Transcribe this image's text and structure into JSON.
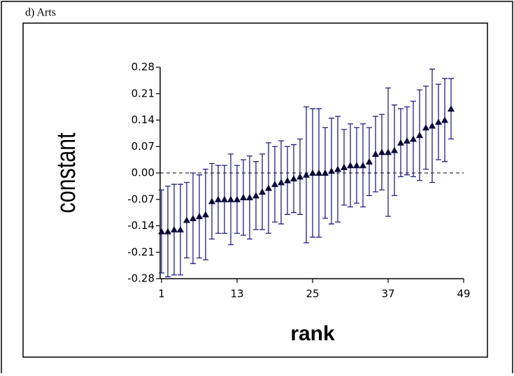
{
  "chart_data": {
    "type": "errorbar",
    "title": "d) Arts",
    "x_label": "rank",
    "y_label": "constant",
    "x": [
      1,
      2,
      3,
      4,
      5,
      6,
      7,
      8,
      9,
      10,
      11,
      12,
      13,
      14,
      15,
      16,
      17,
      18,
      19,
      20,
      21,
      22,
      23,
      24,
      25,
      26,
      27,
      28,
      29,
      30,
      31,
      32,
      33,
      34,
      35,
      36,
      37,
      38,
      39,
      40,
      41,
      42,
      43,
      44,
      45,
      46,
      47
    ],
    "values": [
      -0.155,
      -0.155,
      -0.15,
      -0.15,
      -0.125,
      -0.12,
      -0.115,
      -0.11,
      -0.075,
      -0.07,
      -0.07,
      -0.07,
      -0.07,
      -0.065,
      -0.065,
      -0.06,
      -0.05,
      -0.04,
      -0.03,
      -0.025,
      -0.02,
      -0.015,
      -0.01,
      -0.005,
      0.0,
      0.0,
      0.0,
      0.005,
      0.01,
      0.015,
      0.02,
      0.02,
      0.02,
      0.03,
      0.05,
      0.055,
      0.055,
      0.06,
      0.08,
      0.085,
      0.09,
      0.1,
      0.12,
      0.125,
      0.135,
      0.14,
      0.17
    ],
    "errors": [
      0.11,
      0.12,
      0.12,
      0.12,
      0.1,
      0.12,
      0.11,
      0.12,
      0.1,
      0.09,
      0.09,
      0.12,
      0.09,
      0.1,
      0.11,
      0.09,
      0.1,
      0.12,
      0.1,
      0.11,
      0.09,
      0.09,
      0.1,
      0.18,
      0.17,
      0.17,
      0.12,
      0.14,
      0.14,
      0.1,
      0.11,
      0.1,
      0.11,
      0.09,
      0.1,
      0.1,
      0.17,
      0.12,
      0.09,
      0.09,
      0.1,
      0.12,
      0.11,
      0.15,
      0.1,
      0.11,
      0.08
    ],
    "marker_color": "#0a0a3c",
    "error_color": "#1c1ca0",
    "reference_line": 0,
    "xlim": [
      1,
      49
    ],
    "xticks": [
      1,
      13,
      25,
      37,
      49
    ],
    "ylim": [
      -0.28,
      0.28
    ],
    "yticks": [
      -0.28,
      -0.21,
      -0.14,
      -0.07,
      {
        "value": 0,
        "label": "0.00"
      },
      0.07,
      0.14,
      0.21,
      0.28
    ]
  }
}
